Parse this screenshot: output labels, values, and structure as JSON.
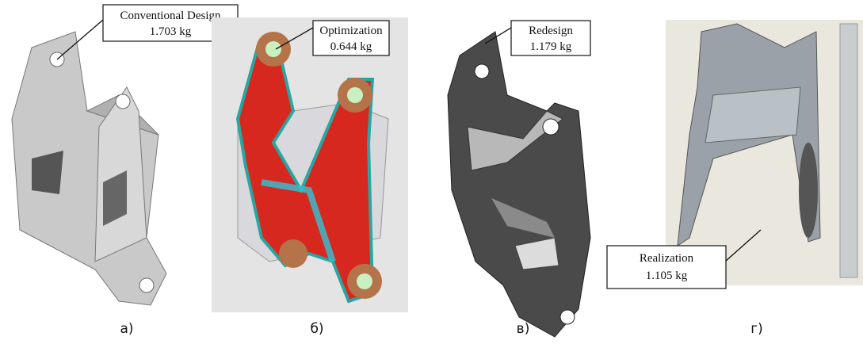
{
  "panels": [
    {
      "name": "Conventional Design",
      "mass": "1.703 kg",
      "caption": "а)"
    },
    {
      "name": "Optimization",
      "mass": "0.644 kg",
      "caption": "б)"
    },
    {
      "name": "Redesign",
      "mass": "1.179 kg",
      "caption": "в)"
    },
    {
      "name": "Realization",
      "mass": "1.105 kg",
      "caption": "г)"
    }
  ]
}
